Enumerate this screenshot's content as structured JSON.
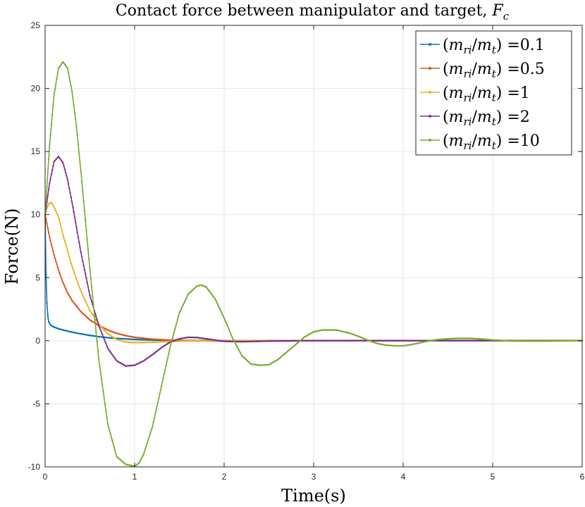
{
  "chart_data": {
    "type": "line",
    "title": "Contact force between manipulator and target, F_c",
    "title_prefix": "Contact force between manipulator and target, ",
    "title_symbol": "F",
    "title_subscript": "c",
    "xlabel": "Time(s)",
    "ylabel": "Force(N)",
    "xlim": [
      0,
      6
    ],
    "ylim": [
      -10,
      25
    ],
    "xticks": [
      "0",
      "1",
      "2",
      "3",
      "4",
      "5",
      "6"
    ],
    "yticks": [
      "-10",
      "-5",
      "0",
      "5",
      "10",
      "15",
      "20",
      "25"
    ],
    "grid": true,
    "legend_position": "top-right",
    "series": [
      {
        "name": "(m_ri/m_t) =0.1",
        "ratio": "0.1",
        "color": "#0072BD",
        "x": [
          0,
          0.01,
          0.02,
          0.03,
          0.04,
          0.06,
          0.08,
          0.1,
          0.15,
          0.2,
          0.3,
          0.4,
          0.5,
          0.6,
          0.7,
          0.8,
          1.0,
          1.2,
          1.5,
          2,
          3,
          4,
          5,
          6
        ],
        "y": [
          10,
          5.2,
          3.0,
          2.0,
          1.5,
          1.25,
          1.15,
          1.08,
          0.95,
          0.85,
          0.68,
          0.54,
          0.42,
          0.32,
          0.24,
          0.18,
          0.1,
          0.05,
          0.02,
          0.0,
          0,
          0,
          0,
          0
        ]
      },
      {
        "name": "(m_ri/m_t) =0.5",
        "ratio": "0.5",
        "color": "#D95319",
        "x": [
          0,
          0.05,
          0.1,
          0.15,
          0.2,
          0.25,
          0.3,
          0.4,
          0.5,
          0.6,
          0.7,
          0.8,
          0.9,
          1.0,
          1.2,
          1.4,
          1.6,
          2,
          2.5,
          3,
          4,
          5,
          6
        ],
        "y": [
          10,
          8.2,
          6.8,
          5.6,
          4.6,
          3.8,
          3.2,
          2.3,
          1.65,
          1.2,
          0.85,
          0.58,
          0.4,
          0.27,
          0.12,
          0.04,
          0.0,
          -0.03,
          -0.02,
          0,
          0,
          0,
          0
        ]
      },
      {
        "name": "(m_ri/m_t) =1",
        "ratio": "1",
        "color": "#EDB120",
        "x": [
          0,
          0.02,
          0.04,
          0.07,
          0.1,
          0.15,
          0.2,
          0.3,
          0.4,
          0.5,
          0.6,
          0.7,
          0.8,
          0.9,
          1.0,
          1.2,
          1.4,
          1.6,
          2,
          2.5,
          3,
          4,
          5,
          6
        ],
        "y": [
          10,
          10.5,
          10.85,
          10.95,
          10.6,
          9.8,
          8.4,
          5.9,
          3.9,
          2.4,
          1.3,
          0.55,
          0.1,
          -0.1,
          -0.15,
          -0.12,
          -0.06,
          -0.02,
          0,
          0,
          0,
          0,
          0,
          0
        ]
      },
      {
        "name": "(m_ri/m_t) =2",
        "ratio": "2",
        "color": "#7E2F8E",
        "x": [
          0,
          0.05,
          0.1,
          0.15,
          0.2,
          0.25,
          0.3,
          0.4,
          0.5,
          0.6,
          0.7,
          0.8,
          0.9,
          1.0,
          1.1,
          1.2,
          1.3,
          1.4,
          1.5,
          1.6,
          1.7,
          1.8,
          1.9,
          2.0,
          2.2,
          2.5,
          3,
          4,
          5,
          6
        ],
        "y": [
          10,
          12.5,
          14.2,
          14.6,
          14.1,
          12.8,
          11.0,
          7.0,
          3.6,
          1.2,
          -0.6,
          -1.6,
          -2.0,
          -1.95,
          -1.6,
          -1.1,
          -0.55,
          -0.1,
          0.15,
          0.27,
          0.25,
          0.15,
          0.05,
          -0.05,
          -0.08,
          -0.03,
          0,
          0,
          0,
          0
        ]
      },
      {
        "name": "(m_ri/m_t) =10",
        "ratio": "10",
        "color": "#77AC30",
        "x": [
          0,
          0.05,
          0.1,
          0.15,
          0.2,
          0.25,
          0.3,
          0.35,
          0.4,
          0.5,
          0.6,
          0.7,
          0.8,
          0.9,
          1.0,
          1.05,
          1.1,
          1.2,
          1.3,
          1.4,
          1.5,
          1.6,
          1.7,
          1.75,
          1.8,
          1.9,
          2.0,
          2.1,
          2.2,
          2.3,
          2.4,
          2.5,
          2.6,
          2.7,
          2.8,
          2.9,
          3.0,
          3.1,
          3.25,
          3.4,
          3.5,
          3.6,
          3.7,
          3.8,
          3.9,
          4.0,
          4.1,
          4.2,
          4.3,
          4.4,
          4.5,
          4.6,
          4.75,
          4.9,
          5.0,
          5.2,
          5.5,
          6.0
        ],
        "y": [
          10,
          15.5,
          19.5,
          21.6,
          22.1,
          21.6,
          19.8,
          17.0,
          13.4,
          5.7,
          -1.5,
          -6.6,
          -9.2,
          -9.8,
          -9.95,
          -9.7,
          -9.0,
          -6.8,
          -3.6,
          -0.4,
          2.2,
          3.7,
          4.35,
          4.4,
          4.25,
          3.3,
          1.8,
          0.1,
          -1.2,
          -1.85,
          -1.95,
          -1.9,
          -1.5,
          -0.9,
          -0.3,
          0.3,
          0.7,
          0.85,
          0.85,
          0.6,
          0.35,
          0.05,
          -0.2,
          -0.35,
          -0.4,
          -0.4,
          -0.3,
          -0.15,
          0.0,
          0.1,
          0.15,
          0.18,
          0.18,
          0.12,
          0.06,
          -0.02,
          -0.03,
          0.0
        ]
      }
    ]
  }
}
